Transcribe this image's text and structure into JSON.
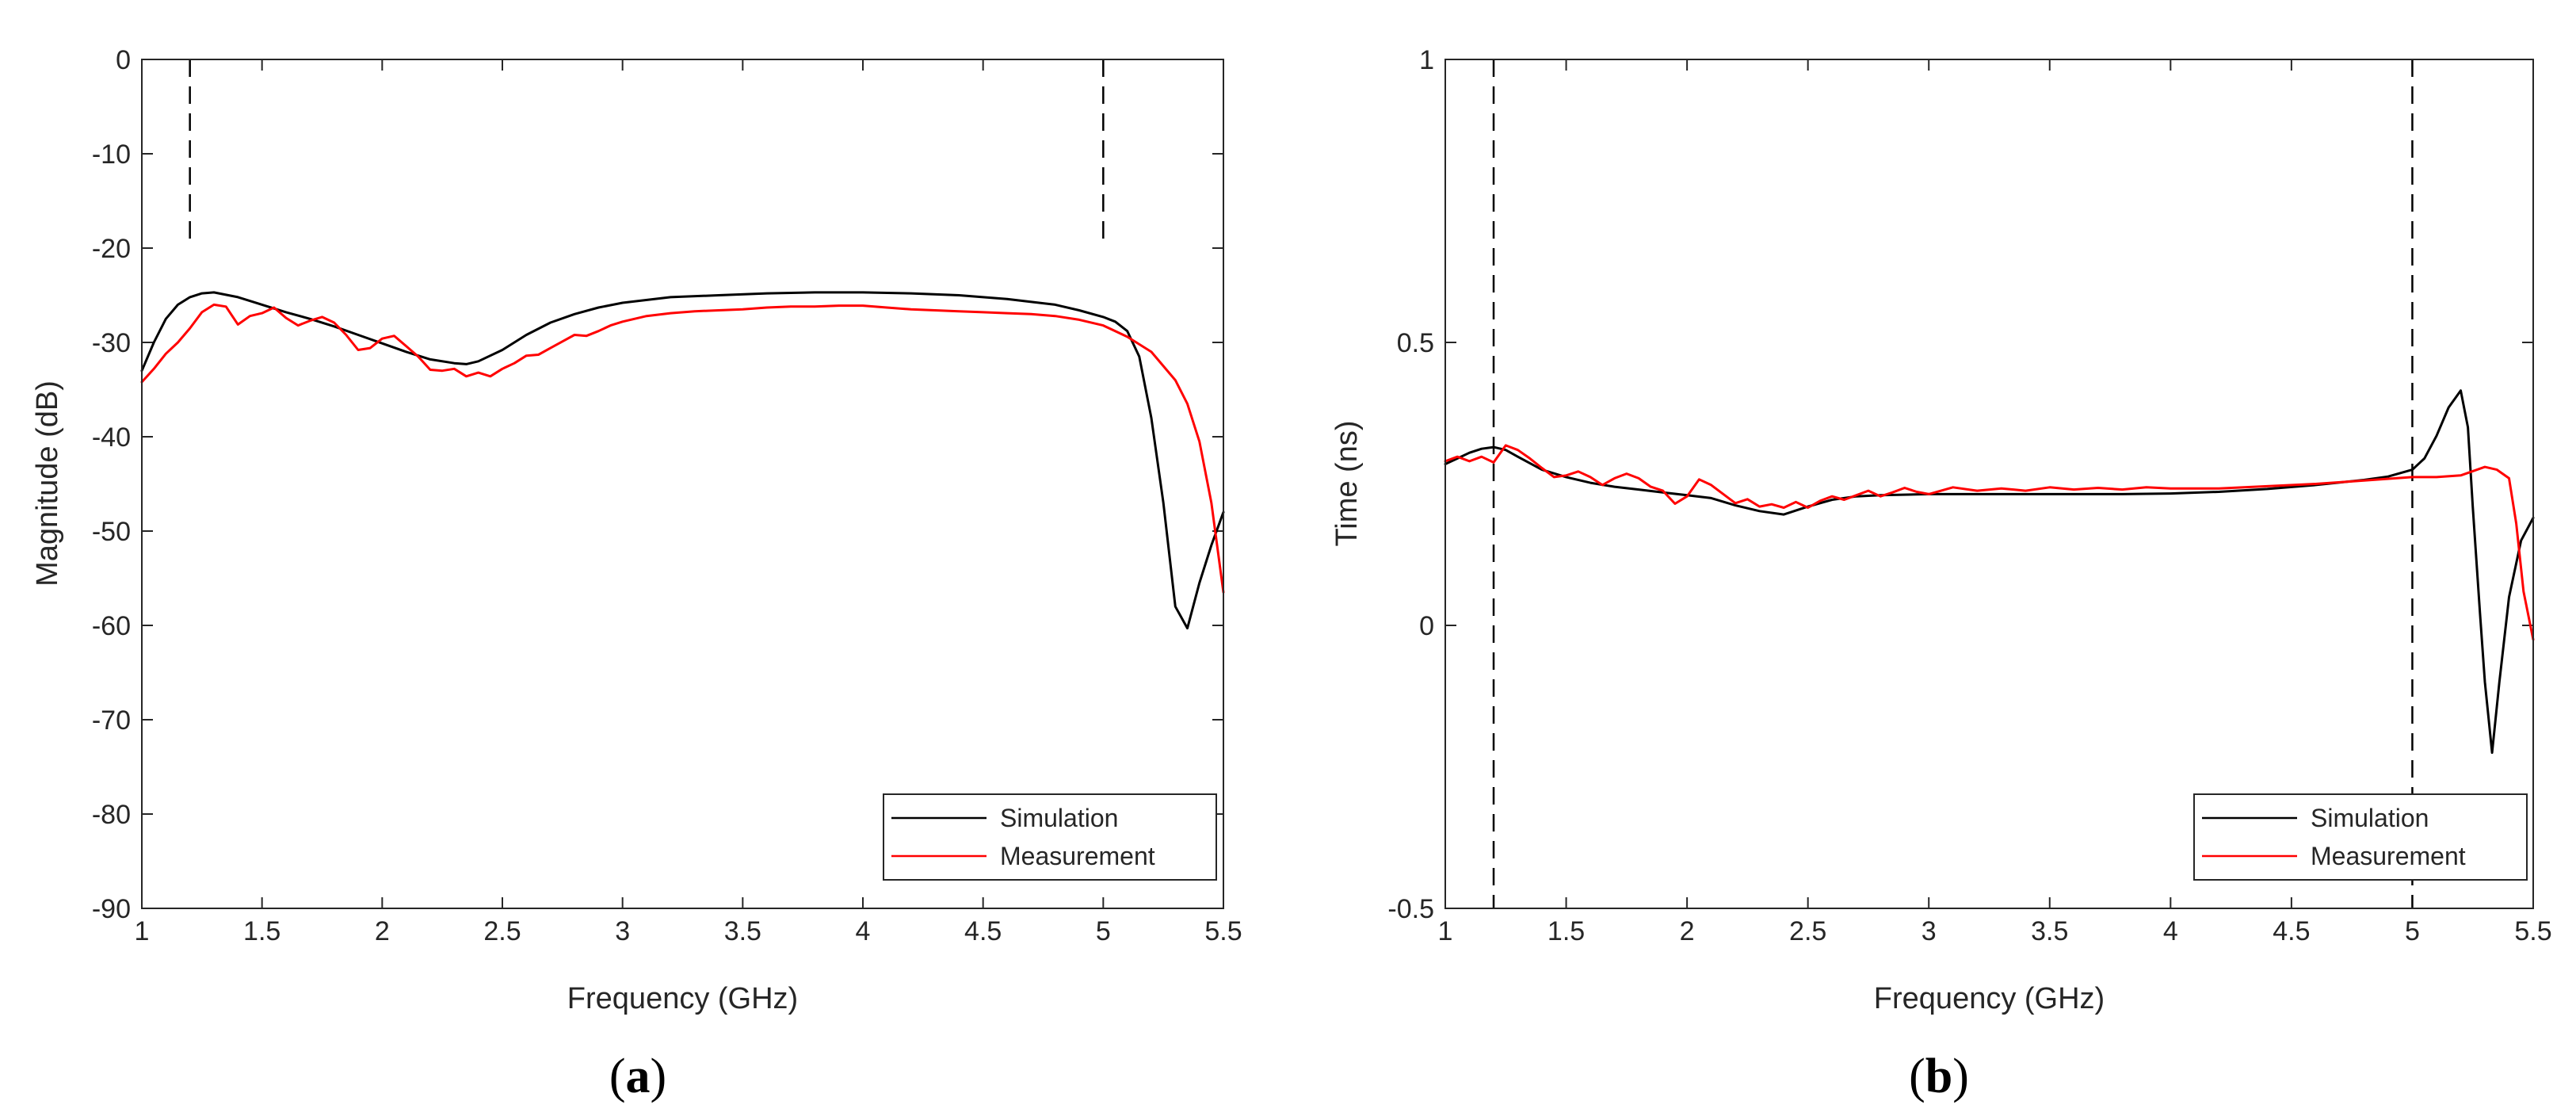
{
  "chart_data": [
    {
      "type": "line",
      "panel": "a",
      "xlabel": "Frequency (GHz)",
      "ylabel": "Magnitude (dB)",
      "xlim": [
        1,
        5.5
      ],
      "ylim": [
        -90,
        0
      ],
      "xticks": [
        1,
        1.5,
        2,
        2.5,
        3,
        3.5,
        4,
        4.5,
        5,
        5.5
      ],
      "xtick_labels": [
        "1",
        "1.5",
        "2",
        "2.5",
        "3",
        "3.5",
        "4",
        "4.5",
        "5",
        "5.5"
      ],
      "yticks": [
        0,
        -10,
        -20,
        -30,
        -40,
        -50,
        -60,
        -70,
        -80,
        -90
      ],
      "ytick_labels": [
        "0",
        "-10",
        "-20",
        "-30",
        "-40",
        "-50",
        "-60",
        "-70",
        "-80",
        "-90"
      ],
      "legend_position": "bottom-right",
      "markers": [
        {
          "x": 1.2,
          "y_from": -20,
          "y_to": 0,
          "style": "dashed"
        },
        {
          "x": 5.0,
          "y_from": -20,
          "y_to": 0,
          "style": "dashed"
        }
      ],
      "series": [
        {
          "name": "Simulation",
          "color": "#000000",
          "x": [
            1.0,
            1.05,
            1.1,
            1.15,
            1.2,
            1.25,
            1.3,
            1.4,
            1.5,
            1.6,
            1.7,
            1.8,
            1.9,
            2.0,
            2.1,
            2.2,
            2.3,
            2.35,
            2.4,
            2.5,
            2.6,
            2.7,
            2.8,
            2.9,
            3.0,
            3.2,
            3.4,
            3.6,
            3.8,
            4.0,
            4.2,
            4.4,
            4.6,
            4.8,
            4.9,
            5.0,
            5.05,
            5.1,
            5.15,
            5.2,
            5.25,
            5.3,
            5.35,
            5.4,
            5.45,
            5.5
          ],
          "y": [
            -33,
            -30,
            -27.5,
            -26,
            -25.2,
            -24.8,
            -24.7,
            -25.2,
            -26,
            -26.8,
            -27.5,
            -28.3,
            -29.2,
            -30.1,
            -31,
            -31.8,
            -32.2,
            -32.3,
            -32.0,
            -30.8,
            -29.2,
            -27.9,
            -27.0,
            -26.3,
            -25.8,
            -25.2,
            -25.0,
            -24.8,
            -24.7,
            -24.7,
            -24.8,
            -25.0,
            -25.4,
            -26.0,
            -26.6,
            -27.3,
            -27.8,
            -28.8,
            -31.5,
            -38,
            -47,
            -58,
            -60.3,
            -55.5,
            -51.5,
            -48
          ]
        },
        {
          "name": "Measurement",
          "color": "#ff0000",
          "x": [
            1.0,
            1.05,
            1.1,
            1.15,
            1.2,
            1.25,
            1.3,
            1.35,
            1.4,
            1.45,
            1.5,
            1.55,
            1.6,
            1.65,
            1.7,
            1.75,
            1.8,
            1.85,
            1.9,
            1.95,
            2.0,
            2.05,
            2.1,
            2.15,
            2.2,
            2.25,
            2.3,
            2.35,
            2.4,
            2.45,
            2.5,
            2.55,
            2.6,
            2.65,
            2.7,
            2.75,
            2.8,
            2.85,
            2.9,
            2.95,
            3.0,
            3.1,
            3.2,
            3.3,
            3.4,
            3.5,
            3.6,
            3.7,
            3.8,
            3.9,
            4.0,
            4.1,
            4.2,
            4.3,
            4.4,
            4.5,
            4.6,
            4.7,
            4.8,
            4.9,
            5.0,
            5.1,
            5.2,
            5.3,
            5.35,
            5.4,
            5.45,
            5.5
          ],
          "y": [
            -34.2,
            -32.8,
            -31.2,
            -30.0,
            -28.5,
            -26.8,
            -26.0,
            -26.2,
            -28.1,
            -27.2,
            -26.9,
            -26.3,
            -27.4,
            -28.2,
            -27.7,
            -27.3,
            -27.9,
            -29.2,
            -30.8,
            -30.6,
            -29.6,
            -29.3,
            -30.4,
            -31.5,
            -32.9,
            -33.0,
            -32.8,
            -33.6,
            -33.2,
            -33.6,
            -32.8,
            -32.2,
            -31.4,
            -31.3,
            -30.6,
            -29.9,
            -29.2,
            -29.3,
            -28.8,
            -28.2,
            -27.8,
            -27.2,
            -26.9,
            -26.7,
            -26.6,
            -26.5,
            -26.3,
            -26.2,
            -26.2,
            -26.1,
            -26.1,
            -26.3,
            -26.5,
            -26.6,
            -26.7,
            -26.8,
            -26.9,
            -27.0,
            -27.2,
            -27.6,
            -28.2,
            -29.4,
            -31.0,
            -34.0,
            -36.5,
            -40.5,
            -47.0,
            -56.5
          ]
        }
      ]
    },
    {
      "type": "line",
      "panel": "b",
      "xlabel": "Frequency (GHz)",
      "ylabel": "Time (ns)",
      "xlim": [
        1,
        5.5
      ],
      "ylim": [
        -0.5,
        1
      ],
      "xticks": [
        1,
        1.5,
        2,
        2.5,
        3,
        3.5,
        4,
        4.5,
        5,
        5.5
      ],
      "xtick_labels": [
        "1",
        "1.5",
        "2",
        "2.5",
        "3",
        "3.5",
        "4",
        "4.5",
        "5",
        "5.5"
      ],
      "yticks": [
        1,
        0.5,
        0,
        -0.5
      ],
      "ytick_labels": [
        "1",
        "0.5",
        "0",
        "-0.5"
      ],
      "legend_position": "bottom-right",
      "markers": [
        {
          "x": 1.2,
          "y_from": -0.5,
          "y_to": 1,
          "style": "dashed"
        },
        {
          "x": 5.0,
          "y_from": -0.5,
          "y_to": 1,
          "style": "dashed"
        }
      ],
      "series": [
        {
          "name": "Simulation",
          "color": "#000000",
          "x": [
            1.0,
            1.05,
            1.1,
            1.15,
            1.2,
            1.25,
            1.3,
            1.4,
            1.5,
            1.6,
            1.7,
            1.8,
            1.9,
            2.0,
            2.1,
            2.2,
            2.3,
            2.4,
            2.5,
            2.6,
            2.7,
            2.8,
            3.0,
            3.2,
            3.4,
            3.6,
            3.8,
            4.0,
            4.2,
            4.4,
            4.6,
            4.8,
            4.9,
            5.0,
            5.05,
            5.1,
            5.15,
            5.2,
            5.23,
            5.25,
            5.28,
            5.3,
            5.33,
            5.36,
            5.4,
            5.45,
            5.5
          ],
          "y": [
            0.285,
            0.295,
            0.305,
            0.312,
            0.315,
            0.31,
            0.298,
            0.275,
            0.262,
            0.252,
            0.245,
            0.24,
            0.235,
            0.23,
            0.225,
            0.212,
            0.202,
            0.196,
            0.21,
            0.222,
            0.228,
            0.23,
            0.232,
            0.232,
            0.232,
            0.232,
            0.232,
            0.233,
            0.236,
            0.241,
            0.248,
            0.257,
            0.263,
            0.275,
            0.295,
            0.335,
            0.385,
            0.415,
            0.35,
            0.21,
            0.02,
            -0.1,
            -0.225,
            -0.1,
            0.05,
            0.15,
            0.19
          ]
        },
        {
          "name": "Measurement",
          "color": "#ff0000",
          "x": [
            1.0,
            1.05,
            1.1,
            1.15,
            1.2,
            1.25,
            1.3,
            1.35,
            1.4,
            1.45,
            1.5,
            1.55,
            1.6,
            1.65,
            1.7,
            1.75,
            1.8,
            1.85,
            1.9,
            1.95,
            2.0,
            2.05,
            2.1,
            2.15,
            2.2,
            2.25,
            2.3,
            2.35,
            2.4,
            2.45,
            2.5,
            2.55,
            2.6,
            2.65,
            2.7,
            2.75,
            2.8,
            2.85,
            2.9,
            2.95,
            3.0,
            3.1,
            3.2,
            3.3,
            3.4,
            3.5,
            3.6,
            3.7,
            3.8,
            3.9,
            4.0,
            4.2,
            4.4,
            4.6,
            4.8,
            5.0,
            5.1,
            5.2,
            5.3,
            5.35,
            5.4,
            5.43,
            5.46,
            5.5
          ],
          "y": [
            0.29,
            0.298,
            0.29,
            0.298,
            0.288,
            0.318,
            0.31,
            0.295,
            0.278,
            0.262,
            0.265,
            0.272,
            0.262,
            0.248,
            0.26,
            0.268,
            0.26,
            0.245,
            0.238,
            0.215,
            0.228,
            0.258,
            0.248,
            0.232,
            0.216,
            0.223,
            0.21,
            0.214,
            0.208,
            0.218,
            0.208,
            0.22,
            0.228,
            0.222,
            0.23,
            0.238,
            0.228,
            0.235,
            0.243,
            0.236,
            0.232,
            0.244,
            0.238,
            0.242,
            0.238,
            0.244,
            0.24,
            0.243,
            0.24,
            0.244,
            0.242,
            0.242,
            0.246,
            0.25,
            0.256,
            0.262,
            0.262,
            0.265,
            0.28,
            0.275,
            0.26,
            0.18,
            0.06,
            -0.025
          ]
        }
      ]
    }
  ],
  "panel_labels": {
    "a": {
      "open": "(",
      "letter": "a",
      "close": ")"
    },
    "b": {
      "open": "(",
      "letter": "b",
      "close": ")"
    }
  }
}
